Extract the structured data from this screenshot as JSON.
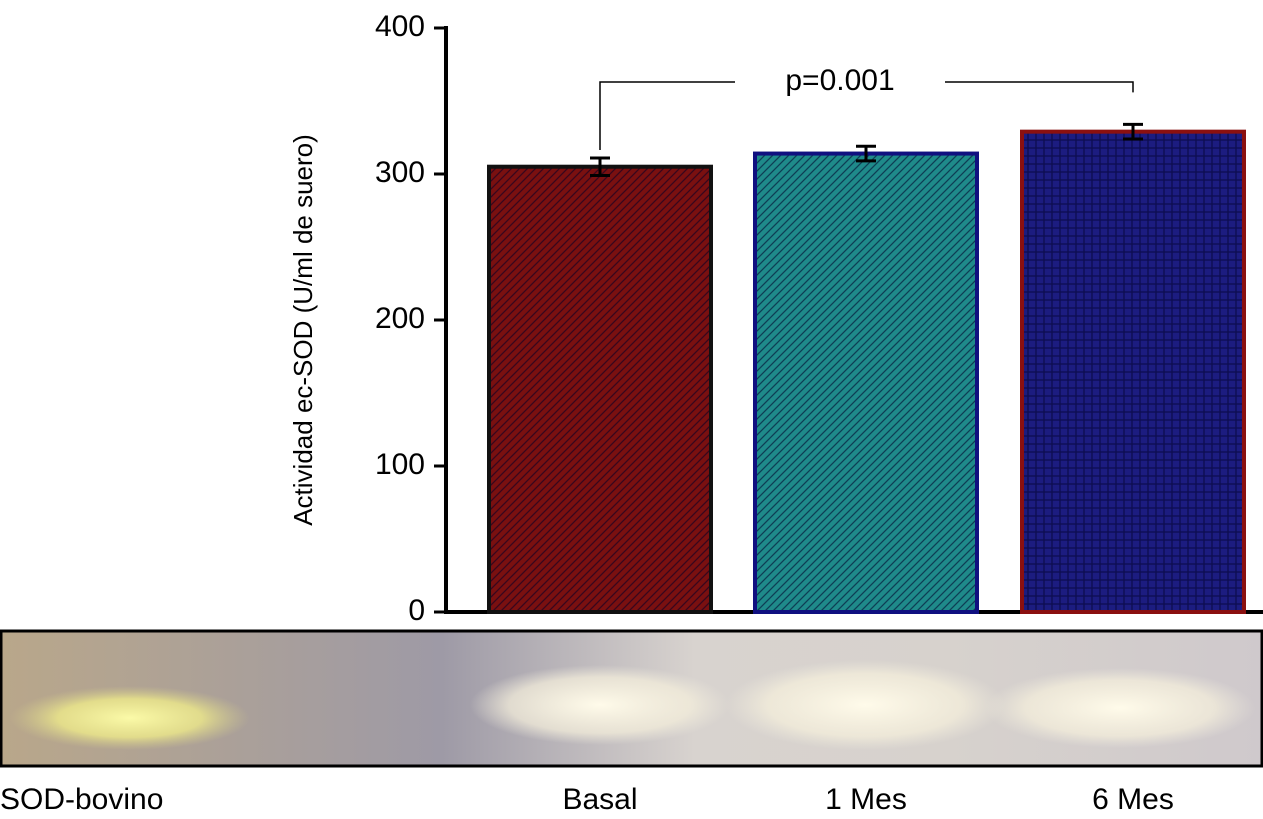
{
  "chart_data": {
    "type": "bar",
    "y_label": "Actividad ec-SOD (U/ml de suero)",
    "categories": [
      "Basal",
      "1 Mes",
      "6 Mes"
    ],
    "values": [
      305,
      314,
      329
    ],
    "errors": [
      6,
      5,
      5
    ],
    "colors": [
      "#7a1010",
      "#1f8a8a",
      "#1c1c80"
    ],
    "edge_colors": [
      "#111111",
      "#101080",
      "#8a1010"
    ],
    "ylim": [
      0,
      400
    ],
    "yticks": [
      0,
      100,
      200,
      300,
      400
    ],
    "annotation": "p=0.001",
    "gel_label": "SOD-bovino"
  }
}
